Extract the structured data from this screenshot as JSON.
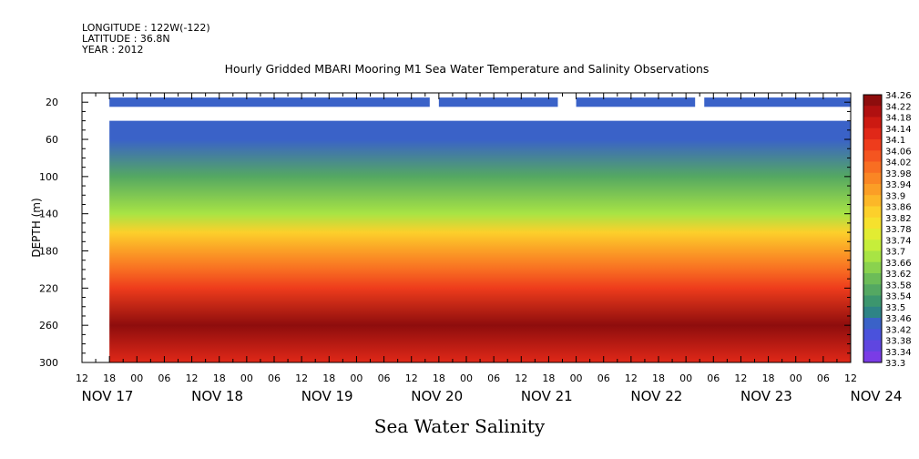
{
  "header": {
    "longitude": "LONGITUDE : 122W(-122)",
    "latitude": "LATITUDE : 36.8N",
    "year": "YEAR : 2012"
  },
  "chart_data": {
    "type": "heatmap",
    "title": "Hourly Gridded MBARI Mooring M1 Sea Water Temperature and Salinity Observations",
    "xlabel": "",
    "ylabel": "DEPTH (m)",
    "footer_label": "Sea Water Salinity",
    "x_range_hours": [
      0,
      168
    ],
    "x_start": "NOV 17 12:00",
    "x_hour_ticks": [
      "12",
      "18",
      "00",
      "06",
      "12",
      "18",
      "00",
      "06",
      "12",
      "18",
      "00",
      "06",
      "12",
      "18",
      "00",
      "06",
      "12",
      "18",
      "00",
      "06",
      "12",
      "18",
      "00",
      "06",
      "12",
      "18",
      "00",
      "06",
      "12"
    ],
    "x_day_labels": [
      {
        "label": "NOV 17",
        "hour": 0
      },
      {
        "label": "NOV 18",
        "hour": 24
      },
      {
        "label": "NOV 19",
        "hour": 48
      },
      {
        "label": "NOV 20",
        "hour": 72
      },
      {
        "label": "NOV 21",
        "hour": 96
      },
      {
        "label": "NOV 22",
        "hour": 120
      },
      {
        "label": "NOV 23",
        "hour": 144
      },
      {
        "label": "NOV 24",
        "hour": 168
      }
    ],
    "y_ticks": [
      20,
      60,
      100,
      140,
      180,
      220,
      260,
      300
    ],
    "ylim": [
      300,
      10
    ],
    "colorbar_levels": [
      34.26,
      34.22,
      34.18,
      34.14,
      34.1,
      34.06,
      34.02,
      33.98,
      33.94,
      33.9,
      33.86,
      33.82,
      33.78,
      33.74,
      33.7,
      33.66,
      33.62,
      33.58,
      33.54,
      33.5,
      33.46,
      33.42,
      33.38,
      33.34,
      33.3
    ],
    "colorbar_colors": [
      "#8e0d0d",
      "#b01010",
      "#cc1a12",
      "#e02818",
      "#ee3c1c",
      "#f45520",
      "#f86e22",
      "#fa8624",
      "#fb9e26",
      "#fcb728",
      "#fcd02b",
      "#f6e12d",
      "#e2ec32",
      "#c6ee3a",
      "#a8e444",
      "#8ad24e",
      "#6cbc58",
      "#54a862",
      "#3c966e",
      "#2e8486",
      "#3a62c8",
      "#4a52dc",
      "#5f46e0",
      "#7a3ce6",
      "#a432ee"
    ],
    "depth_profile": [
      {
        "depth": 20,
        "salinity": 33.45
      },
      {
        "depth": 60,
        "salinity": 33.47
      },
      {
        "depth": 100,
        "salinity": 33.58
      },
      {
        "depth": 140,
        "salinity": 33.72
      },
      {
        "depth": 160,
        "salinity": 33.86
      },
      {
        "depth": 180,
        "salinity": 33.95
      },
      {
        "depth": 200,
        "salinity": 34.02
      },
      {
        "depth": 220,
        "salinity": 34.12
      },
      {
        "depth": 260,
        "salinity": 34.24
      },
      {
        "depth": 300,
        "salinity": 34.16
      }
    ],
    "data_start_hour": 6,
    "surface_sensor_depth": 20,
    "surface_gaps_hours": [
      [
        76,
        78
      ],
      [
        104,
        108
      ],
      [
        134,
        136
      ]
    ],
    "grid": false
  }
}
